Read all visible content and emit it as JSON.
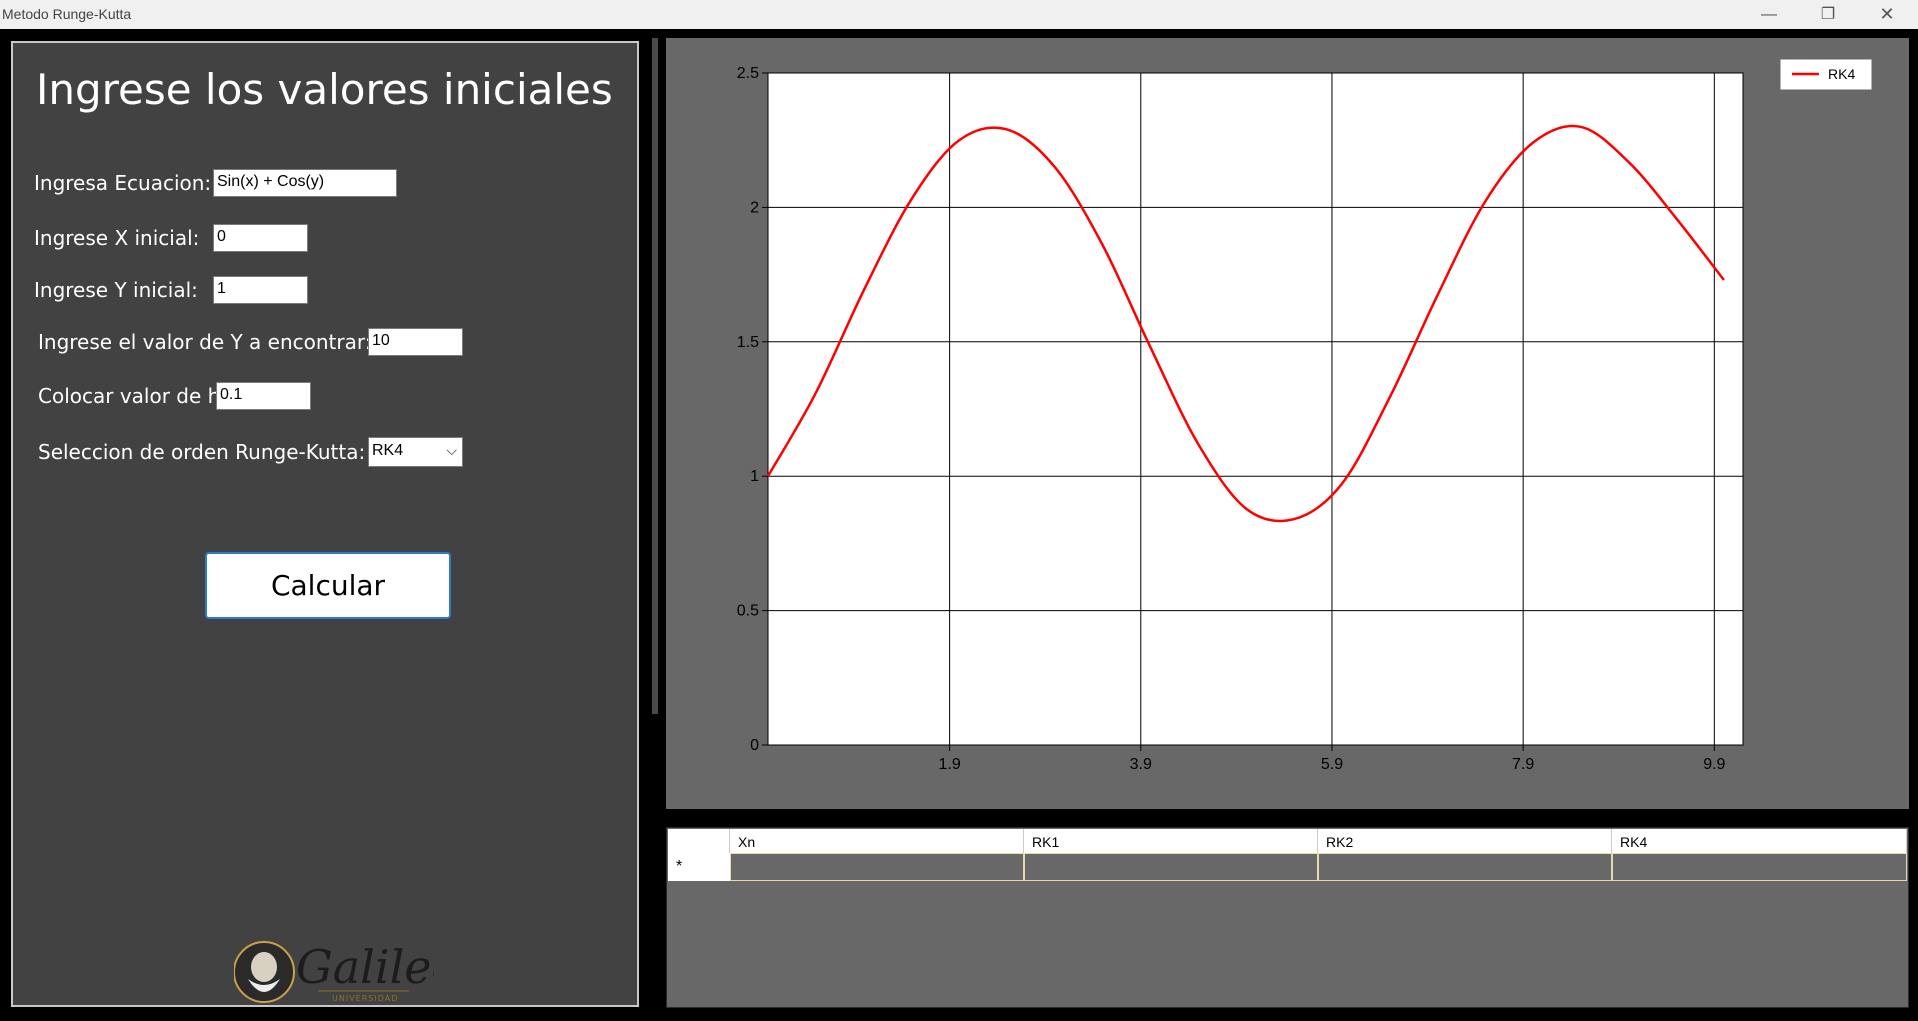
{
  "window": {
    "title": "Metodo Runge-Kutta",
    "minimize": "—",
    "maximize": "❐",
    "close": "✕"
  },
  "form": {
    "heading": "Ingrese los valores iniciales",
    "equation_label": "Ingresa Ecuacion:",
    "equation_value": "Sin(x) + Cos(y)",
    "x0_label": "Ingrese X inicial:",
    "x0_value": "0",
    "y0_label": "Ingrese Y inicial:",
    "y0_value": "1",
    "target_label": "Ingrese el valor de Y a encontrar:",
    "target_value": "10",
    "h_label": "Colocar valor de h:",
    "h_value": "0.1",
    "order_label": "Seleccion de orden Runge-Kutta:",
    "order_value": "RK4",
    "calc_button": "Calcular"
  },
  "logo": {
    "text": "Galileo",
    "subtext": "UNIVERSIDAD"
  },
  "chart_data": {
    "type": "line",
    "series": [
      {
        "name": "RK4",
        "color": "#ff0000",
        "x": [
          0.0,
          0.5,
          1.0,
          1.5,
          2.0,
          2.5,
          3.0,
          3.5,
          4.0,
          4.5,
          5.0,
          5.5,
          6.0,
          6.5,
          7.0,
          7.5,
          8.0,
          8.5,
          9.0,
          9.5,
          10.0
        ],
        "y": [
          1.0,
          1.31,
          1.69,
          2.03,
          2.25,
          2.29,
          2.15,
          1.86,
          1.48,
          1.12,
          0.88,
          0.84,
          0.97,
          1.29,
          1.67,
          2.02,
          2.24,
          2.3,
          2.17,
          1.96,
          1.73
        ]
      }
    ],
    "xlim": [
      0,
      10.2
    ],
    "ylim": [
      0,
      2.5
    ],
    "x_ticks": [
      "1.9",
      "3.9",
      "5.9",
      "7.9",
      "9.9"
    ],
    "x_tick_values": [
      1.9,
      3.9,
      5.9,
      7.9,
      9.9
    ],
    "y_ticks": [
      "0",
      "0.5",
      "1",
      "1.5",
      "2",
      "2.5"
    ],
    "y_tick_values": [
      0,
      0.5,
      1,
      1.5,
      2,
      2.5
    ],
    "grid": true,
    "legend_position": "top-right"
  },
  "table": {
    "columns": [
      "Xn",
      "RK1",
      "RK2",
      "RK4"
    ],
    "new_row_marker": "*"
  }
}
